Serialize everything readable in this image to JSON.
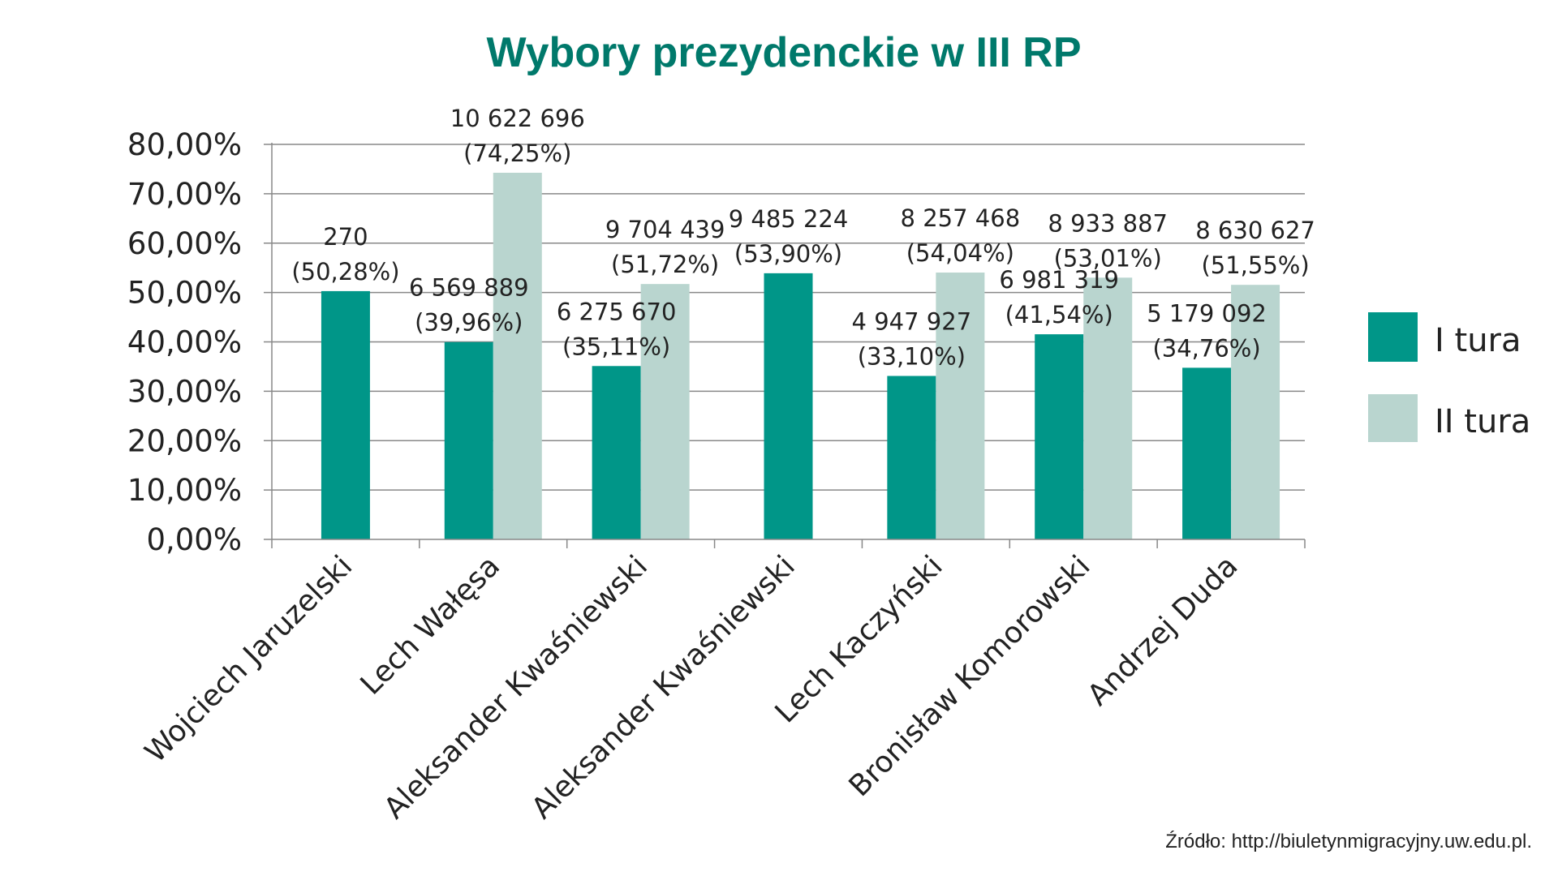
{
  "chart_data": {
    "type": "bar",
    "title": "Wybory prezydenckie w III RP",
    "xlabel": "",
    "ylabel": "",
    "ylim": [
      0,
      80
    ],
    "yticks": [
      "0,00%",
      "10,00%",
      "20,00%",
      "30,00%",
      "40,00%",
      "50,00%",
      "60,00%",
      "70,00%",
      "80,00%"
    ],
    "grid": true,
    "legend_position": "right",
    "categories": [
      "Wojciech Jaruzelski",
      "Lech Wałęsa",
      "Aleksander Kwaśniewski",
      "Aleksander Kwaśniewski",
      "Lech Kaczyński",
      "Bronisław Komorowski",
      "Andrzej Duda"
    ],
    "series": [
      {
        "name": "I tura",
        "color": "#009688",
        "values": [
          50.28,
          39.96,
          35.11,
          53.9,
          33.1,
          41.54,
          34.76
        ],
        "votes": [
          "270",
          "6 569 889",
          "6 275 670",
          "9 485 224",
          "4 947 927",
          "6 981 319",
          "5 179 092"
        ],
        "pct_labels": [
          "(50,28%)",
          "(39,96%)",
          "(35,11%)",
          "(53,90%)",
          "(33,10%)",
          "(41,54%)",
          "(34,76%)"
        ]
      },
      {
        "name": "II tura",
        "color": "#b9d5cf",
        "values": [
          null,
          74.25,
          51.72,
          null,
          54.04,
          53.01,
          51.55
        ],
        "votes": [
          null,
          "10 622 696",
          "9 704 439",
          null,
          "8 257 468",
          "8 933 887",
          "8 630 627"
        ],
        "pct_labels": [
          null,
          "(74,25%)",
          "(51,72%)",
          null,
          "(54,04%)",
          "(53,01%)",
          "(51,55%)"
        ]
      }
    ],
    "source": "Źródło: http://biuletynmigracyjny.uw.edu.pl."
  }
}
